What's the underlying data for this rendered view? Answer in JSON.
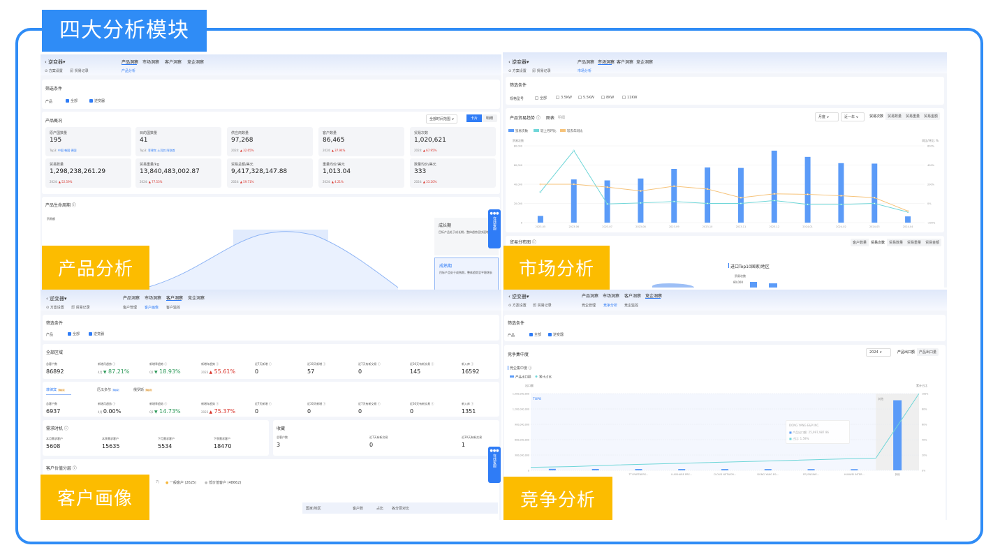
{
  "banner_title": "四大分析模块",
  "labels": {
    "product": "产品分析",
    "market": "市场分析",
    "customer": "客户画像",
    "competition": "竞争分析"
  },
  "colors": {
    "frame": "#2f8cf6",
    "label_bg": "#fcbc00",
    "accent": "#2f7cf6",
    "up": "#d9342b",
    "down": "#2e9a5a"
  },
  "common": {
    "back_icon": "chevron-left-icon",
    "product_name": "逆变器▾",
    "scheme_settings": "⊙ 方案设置",
    "trade_records": "🗐 贸易记录",
    "nav_tabs": [
      "产品洞察",
      "市场洞察",
      "客户洞察",
      "竞企洞察"
    ],
    "filter_title": "筛选条件",
    "product_label": "产品",
    "opt_all": "全部",
    "opt_inverter": "逆变器",
    "online_service": "在线客服"
  },
  "product": {
    "subtab": "产品分析",
    "overview_title": "产品概况",
    "range_select": "全部时间范围 ∨",
    "view_card": "卡片",
    "view_detail": "明细",
    "stats": [
      {
        "label": "原产国数量",
        "value": "195",
        "note": "Top3:",
        "extra": "中国 韩国 德国",
        "up": false
      },
      {
        "label": "目的国数量",
        "value": "41",
        "note": "Top3:",
        "extra": "菲律宾 土耳其 阿联酋",
        "up": false
      },
      {
        "label": "供应商数量",
        "value": "97,268",
        "note": "2024:",
        "extra": "32.65%",
        "up": true
      },
      {
        "label": "客户数量",
        "value": "86,465",
        "note": "2024:",
        "extra": "37.94%",
        "up": true
      },
      {
        "label": "贸易次数",
        "value": "1,020,621",
        "note": "2024:",
        "extra": "67.95%",
        "up": true
      },
      {
        "label": "贸易数量",
        "value": "1,298,238,261.29",
        "note": "2024:",
        "extra": "52.59%",
        "up": true
      },
      {
        "label": "贸易重量/kg",
        "value": "13,840,483,002.87",
        "note": "2024:",
        "extra": "77.53%",
        "up": true
      },
      {
        "label": "贸易总额/美元",
        "value": "9,417,328,147.88",
        "note": "2024:",
        "extra": "59.71%",
        "up": true
      },
      {
        "label": "重量均价/美元",
        "value": "1,013.04",
        "note": "2024:",
        "extra": "4.21%",
        "up": true
      },
      {
        "label": "数量均价/美元",
        "value": "333",
        "note": "2024:",
        "extra": "33.20%",
        "up": true
      }
    ],
    "lifecycle_title": "产品生命周期 ⓘ",
    "lifecycle_axis": "贸易额",
    "stages": [
      {
        "name": "成长期",
        "desc": "目标产品处于成长期，整体趋势呈快速增长"
      },
      {
        "name": "成熟期",
        "desc": "目标产品处于成熟期，整体趋势呈平稳增长"
      }
    ]
  },
  "market": {
    "subtab": "市场分析",
    "spec_label": "规格型号",
    "specs": [
      "全部",
      "3.5KW",
      "5.5KW",
      "8KW",
      "11KW"
    ],
    "trend_title": "产品贸易趋势 ⓘ",
    "view_chart": "图表",
    "view_detail": "明细",
    "period_select": "月度 ∨",
    "range_select": "近一年 ∨",
    "metrics": [
      "贸易次数",
      "贸易数量",
      "贸易重量",
      "贸易金额"
    ],
    "dist_title": "贸易分布图 ⓘ",
    "dist_metrics": [
      "客户数量",
      "贸易次数",
      "贸易数量",
      "贸易重量",
      "贸易金额"
    ],
    "top10_title": "进口Top10国家/地区",
    "top10_axis": "贸易次数",
    "top10_tick": "80,000"
  },
  "customer": {
    "subtabs": [
      "客户管理",
      "客户画像",
      "客户监控"
    ],
    "all_region_title": "全部区域",
    "stat_labels": [
      "总客户数",
      "新增月趋势 ⓘ",
      "新增季趋势 ⓘ",
      "新增年趋势 ⓘ",
      "近7天新增 ⓘ",
      "近30天新增 ⓘ",
      "近7天有新交易 ⓘ",
      "近30天有新交易 ⓘ",
      "新入库 ⓘ"
    ],
    "all_region": [
      {
        "v": "86892"
      },
      {
        "p": "4月",
        "v": "87.21%",
        "dir": "down"
      },
      {
        "p": "Q1",
        "v": "18.93%",
        "dir": "down"
      },
      {
        "p": "2023",
        "v": "55.61%",
        "dir": "up"
      },
      {
        "v": "0"
      },
      {
        "v": "57"
      },
      {
        "v": "0"
      },
      {
        "v": "145"
      },
      {
        "v": "16592"
      }
    ],
    "region_tabs": [
      {
        "name": "菲律宾",
        "badge": "Top1"
      },
      {
        "name": "厄瓜多尔",
        "badge": "Top2"
      },
      {
        "name": "俄罗斯",
        "badge": "Top3"
      }
    ],
    "region": [
      {
        "v": "6937"
      },
      {
        "p": "4月",
        "v": "0.00%",
        "dir": "none"
      },
      {
        "p": "Q1",
        "v": "14.73%",
        "dir": "down"
      },
      {
        "p": "2023",
        "v": "75.37%",
        "dir": "up"
      },
      {
        "v": "0"
      },
      {
        "v": "0"
      },
      {
        "v": "0"
      },
      {
        "v": "0"
      },
      {
        "v": "1351"
      }
    ],
    "demand_title": "需求时机 ⓘ",
    "demand": [
      {
        "l": "本月需求客户",
        "v": "5608"
      },
      {
        "l": "本季需求客户",
        "v": "15635"
      },
      {
        "l": "下月需求客户",
        "v": "5534"
      },
      {
        "l": "下季需求客户",
        "v": "18470"
      }
    ],
    "fav_title": "收藏",
    "fav": [
      {
        "l": "总客户数",
        "v": "3"
      },
      {
        "l": "近7天有新交易",
        "v": "0"
      },
      {
        "l": "近30天有新交易",
        "v": "1"
      }
    ],
    "value_title": "客户价值分层 ⓘ",
    "legend": [
      "7)",
      "一般客户 (2625)",
      "低价值客户 (48662)"
    ],
    "table_headers": [
      "国家/地区",
      "客户数",
      "占比",
      "各分层对比"
    ]
  },
  "competition": {
    "subtabs": [
      "竞企管理",
      "竞争分析",
      "竞企监控"
    ],
    "conc_title": "竞争集中度",
    "year_select": "2024 ∨",
    "metrics": [
      "产品出口额",
      "产品出口量"
    ],
    "sub_title": "竞企集中度 ⓘ",
    "tooltip": {
      "name": "DONG YANG E&P INC.",
      "l1": "产品出口额:  25,997,987.96",
      "l2": "占比:  1.59%"
    }
  },
  "chart_data": [
    {
      "type": "bar+line",
      "legend": [
        "贸易次数",
        "较上月环比",
        "较去年同比"
      ],
      "ylabel": "贸易次数",
      "y2label": "同比/环比: %",
      "categories": [
        "2023-05",
        "2023-06",
        "2023-07",
        "2023-08",
        "2023-09",
        "2023-10",
        "2023-11",
        "2023-12",
        "2024-01",
        "2024-02",
        "2024-03",
        "2024-04"
      ],
      "ylim": [
        0,
        80000
      ],
      "yticks": [
        "0",
        "20,000",
        "40,000",
        "60,000",
        "80,000"
      ],
      "y2lim": [
        -200,
        600
      ],
      "y2ticks": [
        "-200%",
        "0%",
        "200%",
        "400%",
        "600%"
      ],
      "series": [
        {
          "name": "贸易次数",
          "type": "bar",
          "color": "#5b9bf8",
          "values": [
            7000,
            45000,
            44000,
            46000,
            56000,
            57500,
            57000,
            75000,
            68500,
            62000,
            61500,
            6500
          ]
        },
        {
          "name": "较上月环比",
          "type": "line",
          "color": "#6fd6d8",
          "values": [
            120,
            550,
            -5,
            5,
            20,
            0,
            0,
            30,
            -10,
            -10,
            0,
            -90
          ]
        },
        {
          "name": "较去年同比",
          "type": "line",
          "color": "#f6c37a",
          "values": [
            200,
            200,
            170,
            130,
            180,
            150,
            60,
            100,
            95,
            80,
            60,
            -80
          ]
        }
      ]
    },
    {
      "type": "bar+line",
      "legend": [
        "产品出口额",
        "累计占比"
      ],
      "ylabel": "出口额",
      "y2label": "累计占比",
      "annotation_top": "TOP8",
      "annotation_other": "其他",
      "categories": [
        "",
        "",
        "TTI PARTNERS...",
        "LUXSHARE PRE...",
        "CLOUD NETWOR...",
        "DONG YANG E&...",
        "FPJ ENGINE...",
        "HUAWEI INTER...",
        "其他"
      ],
      "ylim": [
        0,
        1500000000
      ],
      "yticks": [
        "0",
        "300,000,000",
        "600,000,000",
        "900,000,000",
        "1,200,000,000",
        "1,500,000,000"
      ],
      "y2ticks": [
        "0%",
        "20%",
        "40%",
        "60%",
        "80%",
        "100%"
      ],
      "series": [
        {
          "name": "产品出口额",
          "type": "bar",
          "color": "#5b9bf8",
          "values": [
            30000000,
            28000000,
            27000000,
            26500000,
            26000000,
            25997988,
            25000000,
            24000000,
            1370000000
          ]
        },
        {
          "name": "累计占比",
          "type": "line",
          "color": "#6fd6d8",
          "values": [
            5,
            7,
            8.5,
            10,
            11.5,
            13,
            14.5,
            16,
            100
          ]
        }
      ]
    }
  ]
}
